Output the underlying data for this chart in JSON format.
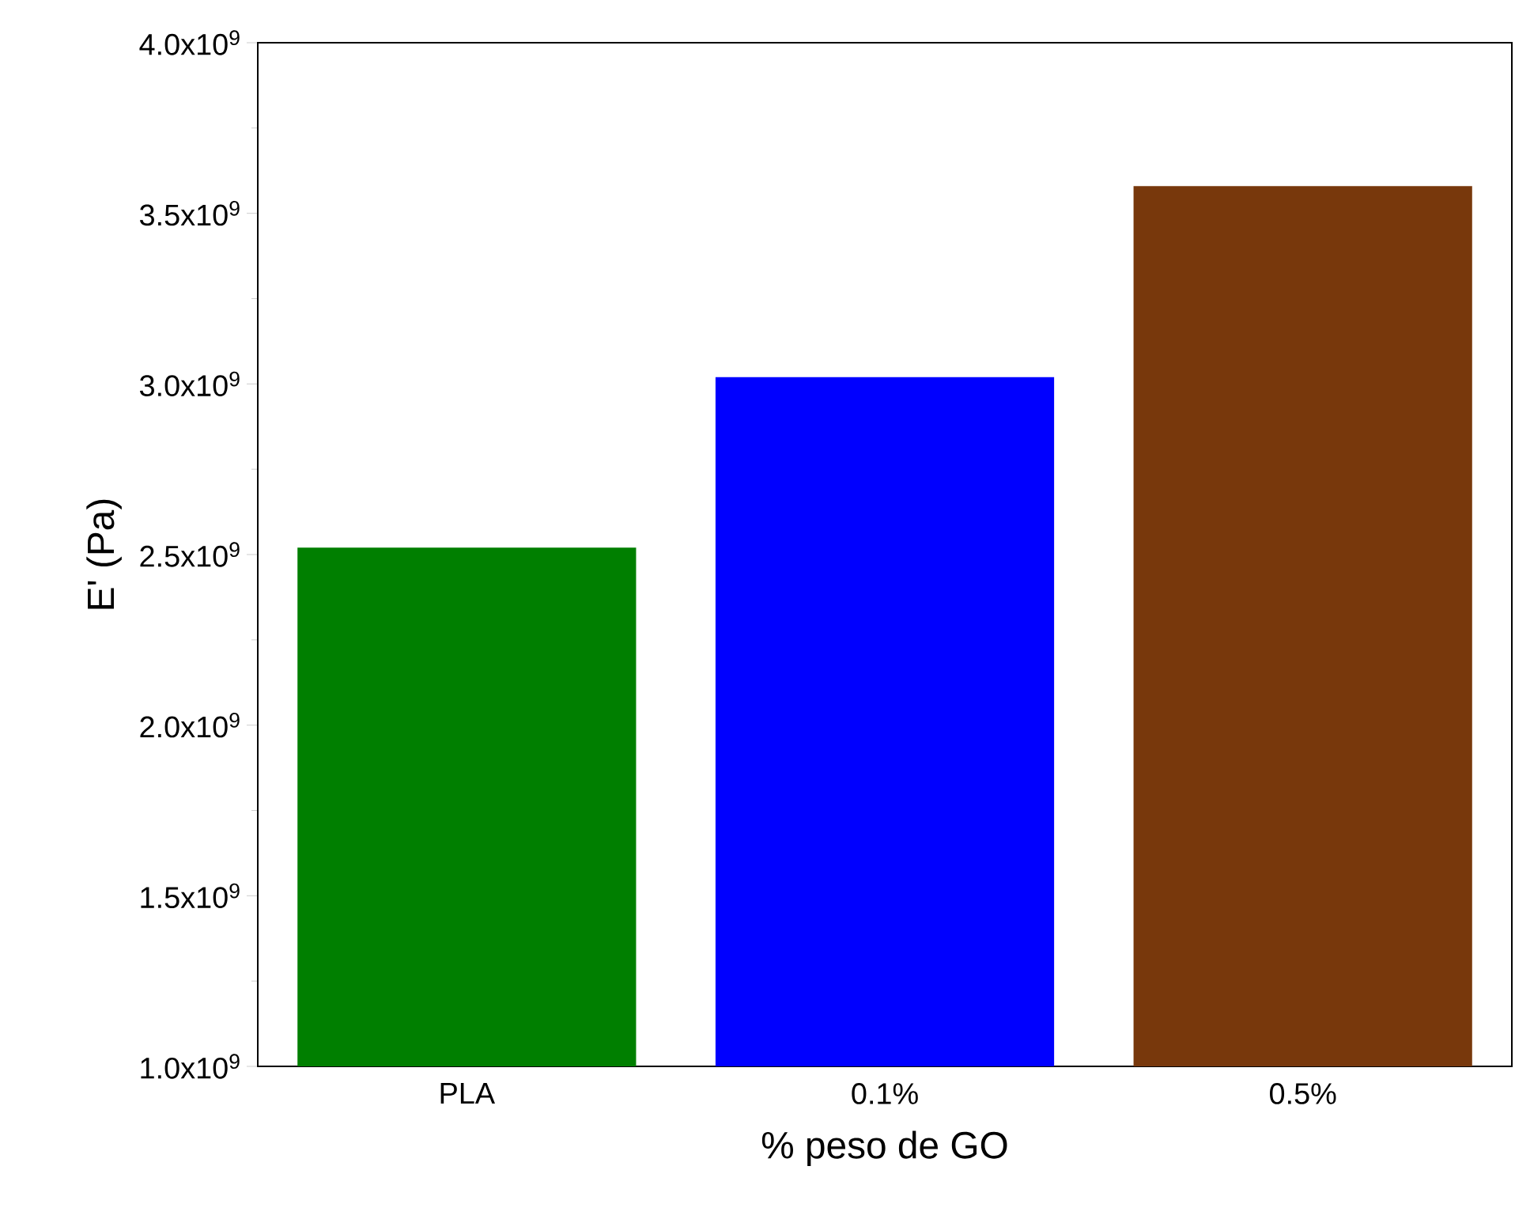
{
  "chart_data": {
    "type": "bar",
    "xlabel": "% peso de GO",
    "ylabel": "E' (Pa)",
    "categories": [
      "PLA",
      "0.1%",
      "0.5%"
    ],
    "values": [
      2520000000,
      3020000000,
      3580000000
    ],
    "colors": [
      "#007f00",
      "#0000ff",
      "#78380c"
    ],
    "ylim": [
      1000000000,
      4000000000
    ],
    "yticks": [
      {
        "value": 1000000000,
        "label": "1.0x10$^{9}$"
      },
      {
        "value": 1500000000,
        "label": "1.5x10$^{9}$"
      },
      {
        "value": 2000000000,
        "label": "2.0x10$^{9}$"
      },
      {
        "value": 2500000000,
        "label": "2.5x10$^{9}$"
      },
      {
        "value": 3000000000,
        "label": "3.0x10$^{9}$"
      },
      {
        "value": 3500000000,
        "label": "3.5x10$^{9}$"
      },
      {
        "value": 4000000000,
        "label": "4.0x10$^{9}$"
      }
    ],
    "grid": false
  }
}
